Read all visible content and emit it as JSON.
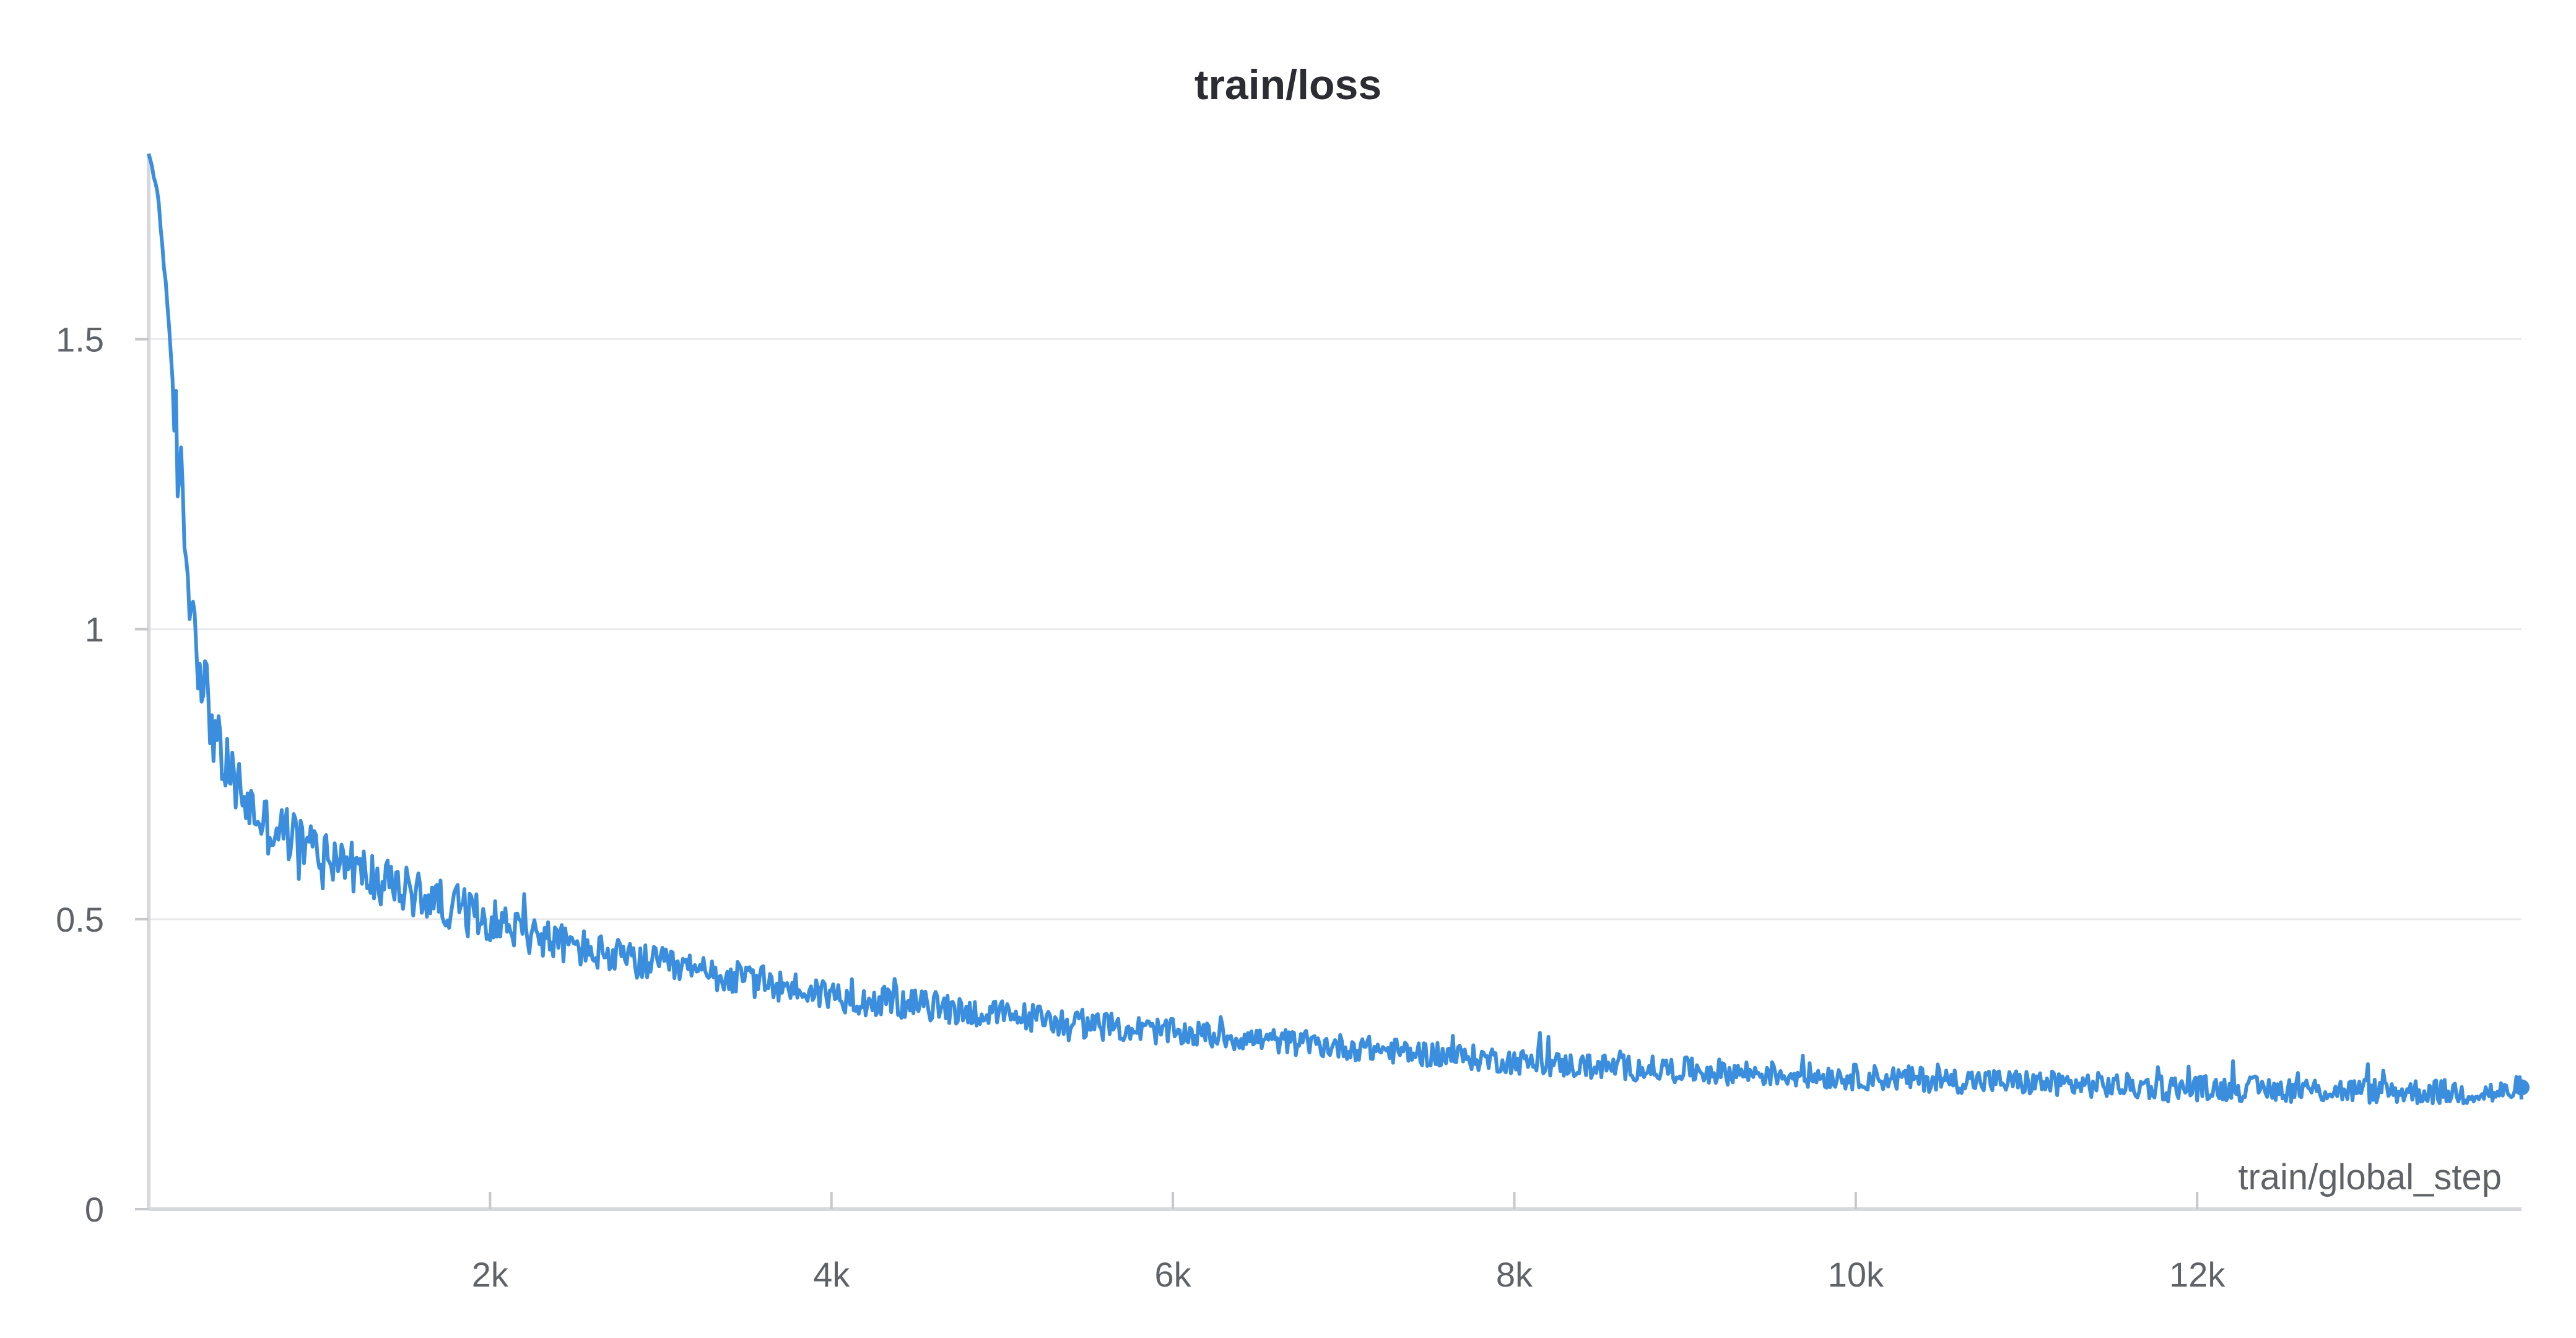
{
  "chart_data": {
    "type": "line",
    "title": "train/loss",
    "xlabel": "train/global_step",
    "ylabel": "",
    "xlim": [
      0,
      13900
    ],
    "ylim": [
      0,
      1.82
    ],
    "grid": true,
    "x_ticks": [
      {
        "value": 2000,
        "label": "2k"
      },
      {
        "value": 4000,
        "label": "4k"
      },
      {
        "value": 6000,
        "label": "6k"
      },
      {
        "value": 8000,
        "label": "8k"
      },
      {
        "value": 10000,
        "label": "10k"
      },
      {
        "value": 12000,
        "label": "12k"
      }
    ],
    "y_ticks": [
      {
        "value": 0,
        "label": "0"
      },
      {
        "value": 0.5,
        "label": "0.5"
      },
      {
        "value": 1,
        "label": "1"
      },
      {
        "value": 1.5,
        "label": "1.5"
      }
    ],
    "series": [
      {
        "color": "#3b8ede",
        "x": [
          0,
          50,
          100,
          150,
          200,
          250,
          300,
          350,
          400,
          450,
          500,
          600,
          700,
          800,
          900,
          1000,
          1200,
          1400,
          1600,
          1800,
          2000,
          2200,
          2400,
          2600,
          2800,
          3000,
          3200,
          3400,
          3600,
          3800,
          4000,
          4200,
          4400,
          4600,
          4800,
          5000,
          5200,
          5400,
          5600,
          5800,
          6000,
          6200,
          6400,
          6600,
          6800,
          7000,
          7200,
          7400,
          7600,
          7800,
          8000,
          8200,
          8400,
          8600,
          8800,
          9000,
          9200,
          9400,
          9600,
          9800,
          10000,
          10200,
          10400,
          10600,
          10800,
          11000,
          11200,
          11400,
          11600,
          11800,
          12000,
          12200,
          12400,
          12600,
          12800,
          13000,
          13200,
          13400,
          13600,
          13800,
          13900
        ],
        "y": [
          1.82,
          1.76,
          1.6,
          1.38,
          1.2,
          1.05,
          0.95,
          0.87,
          0.8,
          0.76,
          0.74,
          0.69,
          0.66,
          0.65,
          0.63,
          0.62,
          0.59,
          0.56,
          0.54,
          0.52,
          0.5,
          0.48,
          0.46,
          0.445,
          0.43,
          0.42,
          0.41,
          0.4,
          0.39,
          0.38,
          0.37,
          0.36,
          0.355,
          0.35,
          0.34,
          0.335,
          0.33,
          0.32,
          0.315,
          0.31,
          0.305,
          0.3,
          0.295,
          0.29,
          0.285,
          0.28,
          0.275,
          0.27,
          0.265,
          0.26,
          0.255,
          0.25,
          0.247,
          0.245,
          0.242,
          0.24,
          0.237,
          0.235,
          0.232,
          0.23,
          0.228,
          0.226,
          0.224,
          0.222,
          0.22,
          0.218,
          0.216,
          0.214,
          0.212,
          0.21,
          0.209,
          0.208,
          0.207,
          0.206,
          0.205,
          0.204,
          0.203,
          0.202,
          0.201,
          0.2,
          0.21
        ]
      }
    ]
  }
}
